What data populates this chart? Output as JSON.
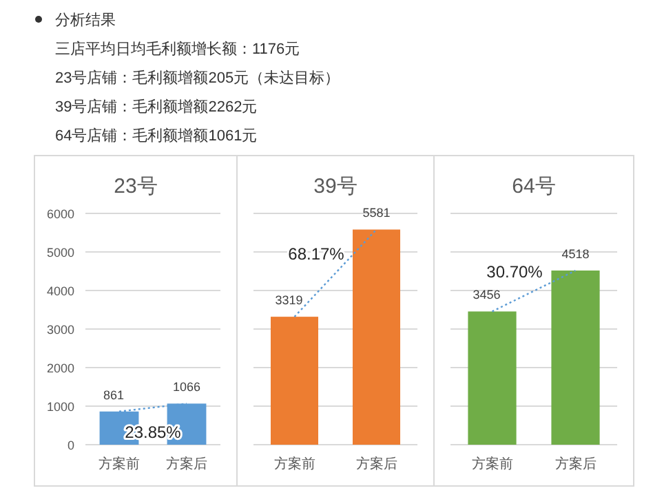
{
  "chart_data": [
    {
      "type": "other",
      "title": "分析结果",
      "annotations": [
        "三店平均日均毛利额增长额：1176元",
        "23号店铺：毛利额增额205元（未达目标）",
        "39号店铺：毛利额增额2262元",
        "64号店铺：毛利额增额1061元"
      ]
    },
    {
      "type": "bar",
      "title": "23号",
      "categories": [
        "方案前",
        "方案后"
      ],
      "ylim": [
        0,
        6000
      ],
      "yticks": [
        0,
        1000,
        2000,
        3000,
        4000,
        5000,
        6000
      ],
      "grid": "y",
      "annotations": [
        "23.85%"
      ],
      "series": [
        {
          "type": "bar",
          "color": "#5b9bd5",
          "values": [
            861,
            1066
          ],
          "value_labels": [
            "861",
            "1066"
          ]
        },
        {
          "type": "line",
          "color": "#5b9bd5",
          "values": [
            861,
            1066
          ],
          "line_style": "dotted",
          "marker": "none"
        }
      ]
    },
    {
      "type": "bar",
      "title": "39号",
      "categories": [
        "方案前",
        "方案后"
      ],
      "ylim": [
        0,
        6000
      ],
      "yticks": [
        0,
        1000,
        2000,
        3000,
        4000,
        5000,
        6000
      ],
      "grid": "y",
      "tick_labels": "x",
      "annotations": [
        "68.17%"
      ],
      "series": [
        {
          "type": "bar",
          "color": "#ed7d31",
          "values": [
            3319,
            5581
          ],
          "value_labels": [
            "3319",
            "5581"
          ]
        },
        {
          "type": "line",
          "color": "#5b9bd5",
          "values": [
            3319,
            5581
          ],
          "line_style": "dotted",
          "marker": "none"
        }
      ]
    },
    {
      "type": "bar",
      "title": "64号",
      "categories": [
        "方案前",
        "方案后"
      ],
      "ylim": [
        0,
        6000
      ],
      "yticks": [
        0,
        1000,
        2000,
        3000,
        4000,
        5000,
        6000
      ],
      "grid": "y",
      "tick_labels": "x",
      "annotations": [
        "30.70%"
      ],
      "series": [
        {
          "type": "bar",
          "color": "#70ad47",
          "values": [
            3456,
            4518
          ],
          "value_labels": [
            "3456",
            "4518"
          ]
        },
        {
          "type": "line",
          "color": "#5b9bd5",
          "values": [
            3456,
            4518
          ],
          "line_style": "dotted",
          "marker": "none"
        }
      ]
    }
  ]
}
